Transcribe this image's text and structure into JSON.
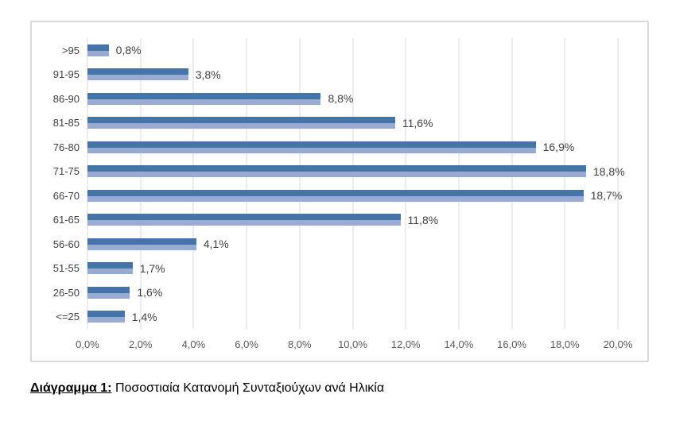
{
  "chart_data": {
    "type": "bar",
    "orientation": "horizontal",
    "categories": [
      ">95",
      "91-95",
      "86-90",
      "81-85",
      "76-80",
      "71-75",
      "66-70",
      "61-65",
      "56-60",
      "51-55",
      "26-50",
      "<=25"
    ],
    "values": [
      0.8,
      3.8,
      8.8,
      11.6,
      16.9,
      18.8,
      18.7,
      11.8,
      4.1,
      1.7,
      1.6,
      1.4
    ],
    "value_labels": [
      "0,8%",
      "3,8%",
      "8,8%",
      "11,6%",
      "16,9%",
      "18,8%",
      "18,7%",
      "11,8%",
      "4,1%",
      "1,7%",
      "1,6%",
      "1,4%"
    ],
    "title": "",
    "xlabel": "",
    "ylabel": "",
    "xlim": [
      0,
      20
    ],
    "x_ticks": [
      0,
      2,
      4,
      6,
      8,
      10,
      12,
      14,
      16,
      18,
      20
    ],
    "x_tick_labels": [
      "0,0%",
      "2,0%",
      "4,0%",
      "6,0%",
      "8,0%",
      "10,0%",
      "12,0%",
      "14,0%",
      "16,0%",
      "18,0%",
      "20,0%"
    ],
    "grid": "vertical",
    "legend": "none",
    "colors": {
      "bar_top": "#4574a9",
      "bar_bottom": "#99aad3",
      "gridline": "#d9d9d9",
      "chart_border": "#d9d9d9",
      "tick_text": "#595959",
      "label_text": "#404040"
    }
  },
  "caption": {
    "prefix": "Διάγραμμα 1:",
    "text": " Ποσοστιαία Κατανομή Συνταξιούχων ανά Ηλικία"
  }
}
